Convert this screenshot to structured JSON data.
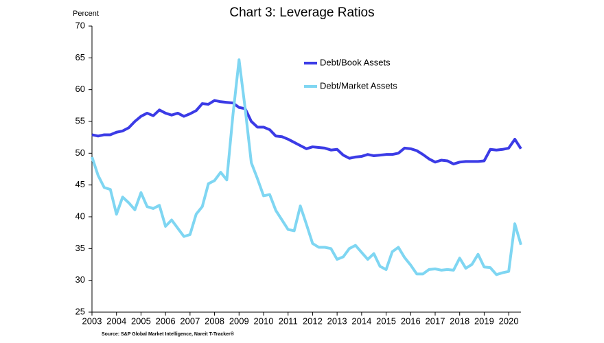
{
  "chart_data": {
    "type": "line",
    "title": "Chart 3: Leverage Ratios",
    "y_label": "Percent",
    "source": "Source: S&P Global Market Intelligence, Nareit T-Tracker®",
    "x": [
      2003,
      2003.25,
      2003.5,
      2003.75,
      2004,
      2004.25,
      2004.5,
      2004.75,
      2005,
      2005.25,
      2005.5,
      2005.75,
      2006,
      2006.25,
      2006.5,
      2006.75,
      2007,
      2007.25,
      2007.5,
      2007.75,
      2008,
      2008.25,
      2008.5,
      2008.75,
      2009,
      2009.25,
      2009.5,
      2009.75,
      2010,
      2010.25,
      2010.5,
      2010.75,
      2011,
      2011.25,
      2011.5,
      2011.75,
      2012,
      2012.25,
      2012.5,
      2012.75,
      2013,
      2013.25,
      2013.5,
      2013.75,
      2014,
      2014.25,
      2014.5,
      2014.75,
      2015,
      2015.25,
      2015.5,
      2015.75,
      2016,
      2016.25,
      2016.5,
      2016.75,
      2017,
      2017.25,
      2017.5,
      2017.75,
      2018,
      2018.25,
      2018.5,
      2018.75,
      2019,
      2019.25,
      2019.5,
      2019.75,
      2020,
      2020.25,
      2020.5
    ],
    "series": [
      {
        "name": "Debt/Book Assets",
        "color": "#3b3be6",
        "values": [
          52.9,
          52.7,
          52.9,
          52.9,
          53.3,
          53.5,
          54.0,
          55.0,
          55.8,
          56.3,
          55.9,
          56.8,
          56.3,
          56.0,
          56.3,
          55.8,
          56.2,
          56.7,
          57.8,
          57.7,
          58.3,
          58.1,
          58.0,
          57.9,
          57.2,
          57.0,
          55.0,
          54.1,
          54.1,
          53.7,
          52.7,
          52.6,
          52.2,
          51.7,
          51.2,
          50.7,
          51.0,
          50.9,
          50.8,
          50.5,
          50.6,
          49.7,
          49.2,
          49.4,
          49.5,
          49.8,
          49.6,
          49.7,
          49.8,
          49.8,
          50.0,
          50.8,
          50.7,
          50.4,
          49.8,
          49.1,
          48.6,
          48.9,
          48.8,
          48.3,
          48.6,
          48.7,
          48.7,
          48.7,
          48.8,
          50.6,
          50.5,
          50.6,
          50.8,
          52.2,
          50.7
        ]
      },
      {
        "name": "Debt/Market Assets",
        "color": "#7fd6f2",
        "values": [
          49.4,
          46.5,
          44.6,
          44.3,
          40.4,
          43.1,
          42.2,
          41.1,
          43.8,
          41.6,
          41.3,
          41.8,
          38.5,
          39.5,
          38.2,
          36.9,
          37.2,
          40.4,
          41.6,
          45.2,
          45.7,
          47.0,
          45.8,
          56.0,
          64.7,
          57.0,
          48.5,
          46.0,
          43.3,
          43.5,
          41.0,
          39.5,
          38.0,
          37.8,
          41.7,
          38.8,
          35.8,
          35.2,
          35.2,
          35.0,
          33.3,
          33.7,
          35.0,
          35.5,
          34.4,
          33.3,
          34.2,
          32.2,
          31.7,
          34.5,
          35.2,
          33.6,
          32.4,
          31.0,
          31.0,
          31.7,
          31.8,
          31.6,
          31.7,
          31.6,
          33.5,
          31.9,
          32.5,
          34.1,
          32.1,
          32.0,
          30.9,
          31.2,
          31.4,
          38.9,
          35.6
        ]
      }
    ],
    "xlim": [
      2003,
      2020.5
    ],
    "xticks": [
      2003,
      2004,
      2005,
      2006,
      2007,
      2008,
      2009,
      2010,
      2011,
      2012,
      2013,
      2014,
      2015,
      2016,
      2017,
      2018,
      2019,
      2020
    ],
    "ylim": [
      25,
      70
    ],
    "yticks": [
      25,
      30,
      35,
      40,
      45,
      50,
      55,
      60,
      65,
      70
    ],
    "grid": false,
    "legend": "top"
  }
}
